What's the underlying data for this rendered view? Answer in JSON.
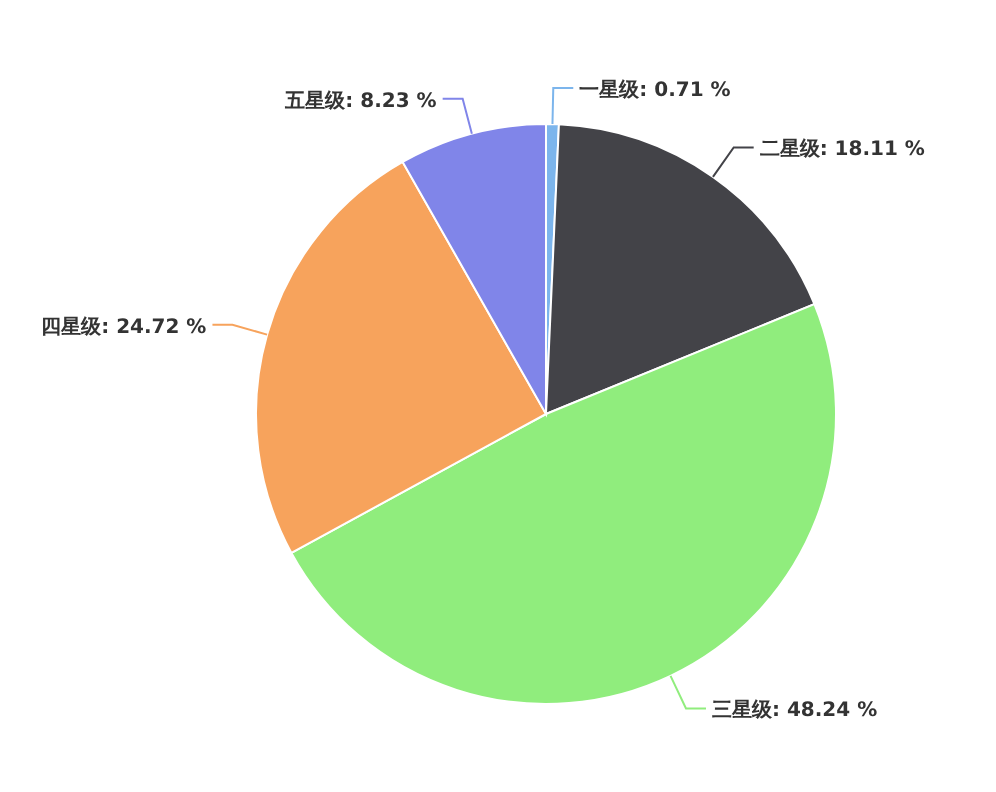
{
  "chart_data": {
    "type": "pie",
    "categories": [
      "一星级",
      "二星级",
      "三星级",
      "四星级",
      "五星级"
    ],
    "values": [
      0.71,
      18.11,
      48.24,
      24.72,
      8.23
    ],
    "colors": [
      "#7cb5ec",
      "#434348",
      "#90ed7d",
      "#f7a35c",
      "#8085e9"
    ],
    "value_labels": [
      ": 0.71 %",
      ": 18.11 %",
      ": 48.24 %",
      ": 24.72 %",
      ": 8.23 %"
    ]
  }
}
